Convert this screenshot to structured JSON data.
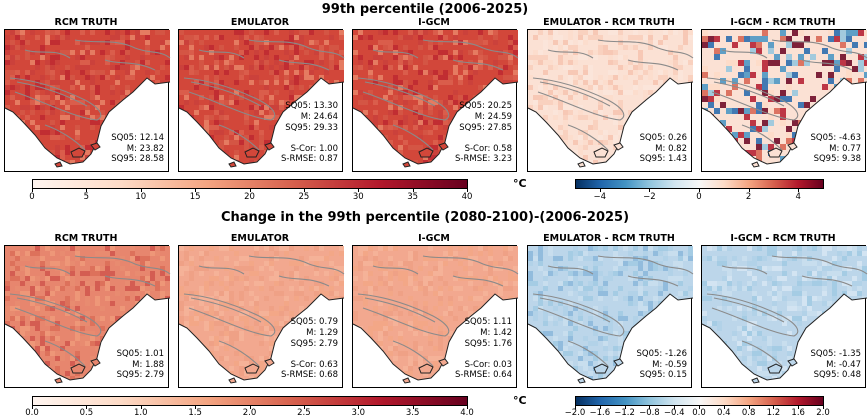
{
  "row1": {
    "title": "99th percentile (2006-2025)",
    "panels": [
      {
        "title": "RCM TRUTH",
        "kind": "abs",
        "lines": [
          "SQ05: 12.14",
          "M: 23.82",
          "SQ95: 28.58"
        ]
      },
      {
        "title": "EMULATOR",
        "kind": "abs",
        "lines": [
          "SQ05: 13.30",
          "M: 24.64",
          "SQ95: 29.33",
          "",
          "S-Cor: 1.00",
          "S-RMSE: 0.87"
        ]
      },
      {
        "title": "I-GCM",
        "kind": "abs",
        "lines": [
          "SQ05: 20.25",
          "M: 24.59",
          "SQ95: 27.85",
          "",
          "S-Cor: 0.58",
          "S-RMSE: 3.23"
        ]
      },
      {
        "title": "EMULATOR - RCM TRUTH",
        "kind": "diff-light",
        "lines": [
          "SQ05: 0.26",
          "M: 0.82",
          "SQ95: 1.43"
        ]
      },
      {
        "title": "I-GCM - RCM TRUTH",
        "kind": "diff-strong",
        "lines": [
          "SQ05: -4.63",
          "M: 0.77",
          "SQ95: 9.38"
        ]
      }
    ],
    "cbar_left": {
      "ticks": [
        "0",
        "5",
        "10",
        "15",
        "20",
        "25",
        "30",
        "35",
        "40"
      ]
    },
    "cbar_right": {
      "unit": "°C",
      "ticks": [
        "−4",
        "−2",
        "0",
        "2",
        "4"
      ]
    }
  },
  "row2": {
    "title": "Change in the 99th percentile (2080-2100)-(2006-2025)",
    "panels": [
      {
        "title": "RCM TRUTH",
        "kind": "abs2",
        "lines": [
          "SQ05: 1.01",
          "M: 1.88",
          "SQ95: 2.79"
        ]
      },
      {
        "title": "EMULATOR",
        "kind": "abs2-light",
        "lines": [
          "SQ05: 0.79",
          "M: 1.29",
          "SQ95: 2.79",
          "",
          "S-Cor: 0.63",
          "S-RMSE: 0.68"
        ]
      },
      {
        "title": "I-GCM",
        "kind": "abs2-light",
        "lines": [
          "SQ05: 1.11",
          "M: 1.42",
          "SQ95: 1.76",
          "",
          "S-Cor: 0.03",
          "S-RMSE: 0.64"
        ]
      },
      {
        "title": "EMULATOR - RCM TRUTH",
        "kind": "diff-blue",
        "lines": [
          "SQ05: -1.26",
          "M: -0.59",
          "SQ95: 0.15"
        ]
      },
      {
        "title": "I-GCM - RCM TRUTH",
        "kind": "diff-blue2",
        "lines": [
          "SQ05: -1.35",
          "M: -0.47",
          "SQ95: 0.48"
        ]
      }
    ],
    "cbar_left": {
      "ticks": [
        "0.0",
        "0.5",
        "1.0",
        "1.5",
        "2.0",
        "2.5",
        "3.0",
        "3.5",
        "4.0"
      ]
    },
    "cbar_right": {
      "unit": "°C",
      "ticks": [
        "−2.0",
        "−1.6",
        "−1.2",
        "−0.8",
        "−0.4",
        "0.0",
        "0.4",
        "0.8",
        "1.2",
        "1.6",
        "2.0"
      ]
    }
  },
  "colors": {
    "abs": "#d2473a",
    "abs_dark": "#b2182b",
    "abs2": "#e7866e",
    "abs2_light": "#f2a88f",
    "diff_light": "#fbe1d4",
    "diff_blue": "#bcd6ea",
    "sea": "#ffffff",
    "contour": "#8a8a8a"
  }
}
